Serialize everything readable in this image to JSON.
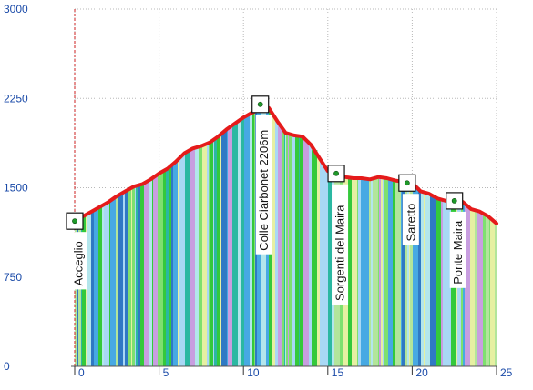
{
  "chart_data": {
    "type": "area",
    "title": "",
    "xlabel": "",
    "ylabel": "",
    "xlim": [
      0,
      25
    ],
    "ylim": [
      0,
      3000
    ],
    "grid": true,
    "y_ticks": [
      "3000",
      "2250",
      "1500",
      "750",
      "0"
    ],
    "x_ticks": [
      "0",
      "5",
      "10",
      "15",
      "20",
      "25"
    ],
    "series": [
      {
        "values_x": [
          0,
          0.5,
          1,
          1.5,
          2,
          2.5,
          3,
          3.5,
          4,
          4.5,
          5,
          5.5,
          6,
          6.5,
          7,
          7.5,
          8,
          8.5,
          9,
          9.5,
          10,
          10.5,
          11,
          11.5,
          12,
          12.5,
          13,
          13.5,
          14,
          14.5,
          15,
          15.5,
          16,
          16.5,
          17,
          17.5,
          18,
          18.5,
          19,
          19.5,
          20,
          20.5,
          21,
          21.5,
          22,
          22.5,
          23,
          23.5,
          24,
          24.5,
          25
        ],
        "values_y": [
          1220,
          1260,
          1300,
          1340,
          1380,
          1430,
          1470,
          1510,
          1530,
          1570,
          1620,
          1660,
          1720,
          1790,
          1830,
          1850,
          1880,
          1930,
          1990,
          2040,
          2090,
          2130,
          2160,
          2170,
          2060,
          1960,
          1940,
          1930,
          1860,
          1750,
          1640,
          1620,
          1590,
          1580,
          1580,
          1570,
          1590,
          1580,
          1560,
          1550,
          1540,
          1470,
          1450,
          1410,
          1390,
          1400,
          1380,
          1320,
          1300,
          1260,
          1200
        ]
      }
    ],
    "colors": {
      "profile_line": "#e51b1b",
      "axis_tick_text": "#1a4aa8",
      "start_line": "#cc2222",
      "fill_stripes": [
        "#b3e6ec",
        "#47a9e3",
        "#2f79c4",
        "#7ee06f",
        "#34c93b",
        "#b2e59b",
        "#c89ee0",
        "#e6f0a2",
        "#2bb8a2",
        "#a8d8f5"
      ]
    },
    "waypoints": [
      {
        "x": 0,
        "y": 1220,
        "label": "Acceglio"
      },
      {
        "x": 11,
        "y": 2200,
        "label": "Colle Ciarbonet 2206m"
      },
      {
        "x": 15.5,
        "y": 1620,
        "label": "Sorgenti del Maira"
      },
      {
        "x": 19.7,
        "y": 1540,
        "label": "Saretto"
      },
      {
        "x": 22.5,
        "y": 1390,
        "label": "Ponte Maira"
      }
    ]
  }
}
